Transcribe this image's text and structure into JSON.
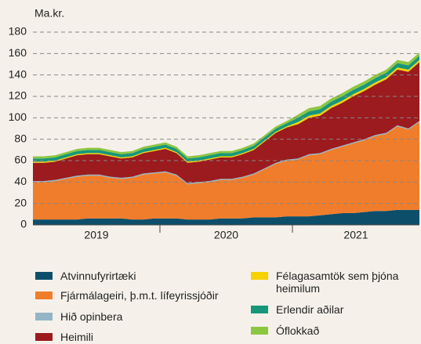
{
  "chart_data": {
    "type": "stacked_area",
    "y_unit_label": "Ma.kr.",
    "categories": [
      null,
      null,
      null,
      null,
      null,
      null,
      null,
      null,
      null,
      null,
      null,
      null,
      null,
      null,
      null,
      null,
      null,
      null,
      null,
      null,
      null,
      null,
      null,
      null,
      null,
      null,
      null,
      null,
      null,
      null,
      null,
      null,
      null,
      null,
      null,
      null
    ],
    "year_labels": [
      "2019",
      "2020",
      "2021"
    ],
    "ylim": [
      0,
      180
    ],
    "yticks": [
      0,
      20,
      40,
      60,
      80,
      100,
      120,
      140,
      160,
      180
    ],
    "grid": true,
    "series": [
      {
        "name": "Atvinnufyrirtæki",
        "color": "#0d4f6b",
        "values": [
          5,
          5,
          5,
          5,
          5,
          6,
          6,
          6,
          6,
          5,
          5,
          6,
          6,
          6,
          5,
          5,
          5,
          6,
          6,
          6,
          7,
          7,
          7,
          8,
          8,
          8,
          9,
          10,
          11,
          11,
          12,
          13,
          13,
          14,
          14,
          14
        ]
      },
      {
        "name": "Fjármálageiri, þ.m.t. lífeyrissjóðir",
        "color": "#f07d2b",
        "values": [
          35,
          35,
          36,
          38,
          40,
          40,
          40,
          38,
          37,
          39,
          42,
          42,
          43,
          40,
          33,
          34,
          35,
          36,
          36,
          38,
          40,
          45,
          50,
          52,
          53,
          57,
          57,
          60,
          62,
          65,
          67,
          70,
          72,
          78,
          75,
          82
        ]
      },
      {
        "name": "Hið opinbera",
        "color": "#93b5c6",
        "values": [
          1,
          1,
          1,
          1,
          1,
          1,
          1,
          1,
          1,
          1,
          1,
          1,
          1,
          1,
          1,
          1,
          1,
          1,
          1,
          1,
          1,
          1,
          1,
          1,
          1,
          1,
          1,
          1,
          1,
          1,
          1,
          1,
          1,
          1,
          1,
          1
        ]
      },
      {
        "name": "Heimili",
        "color": "#9b1b1f",
        "values": [
          17,
          17,
          17,
          18,
          19,
          19,
          19,
          19,
          18,
          18,
          19,
          20,
          21,
          20,
          19,
          19,
          20,
          20,
          20,
          21,
          22,
          25,
          28,
          30,
          32,
          34,
          35,
          38,
          40,
          43,
          45,
          47,
          50,
          52,
          53,
          55
        ]
      },
      {
        "name": "Félagasamtök sem þjóna heimilum",
        "color": "#f6d200",
        "values": [
          1,
          1,
          1,
          1,
          1,
          1,
          1,
          1,
          1,
          1,
          1,
          1,
          1,
          1,
          1,
          1,
          1,
          1,
          1,
          1,
          1,
          1,
          1,
          1,
          2,
          2,
          2,
          2,
          2,
          2,
          2,
          2,
          2,
          2,
          2,
          2
        ]
      },
      {
        "name": "Erlendir aðilar",
        "color": "#16977a",
        "values": [
          3,
          3,
          3,
          3,
          3,
          3,
          3,
          3,
          3,
          3,
          3,
          3,
          3,
          3,
          3,
          3,
          3,
          3,
          3,
          3,
          3,
          3,
          3,
          3,
          4,
          4,
          4,
          4,
          4,
          4,
          4,
          4,
          4,
          4,
          4,
          4
        ]
      },
      {
        "name": "Óflokkað",
        "color": "#8dc641",
        "values": [
          2,
          2,
          2,
          2,
          2,
          2,
          2,
          2,
          2,
          2,
          2,
          2,
          2,
          2,
          2,
          2,
          2,
          2,
          2,
          2,
          2,
          2,
          2,
          2,
          3,
          3,
          3,
          3,
          3,
          3,
          3,
          3,
          3,
          3,
          3,
          3
        ]
      }
    ]
  }
}
